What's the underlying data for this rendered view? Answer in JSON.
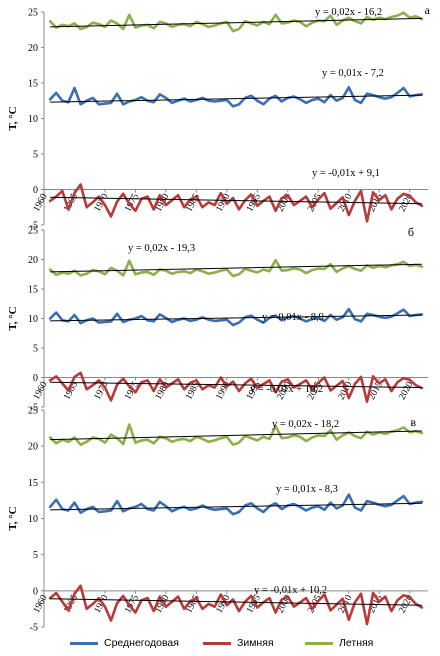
{
  "chart_data": [
    {
      "type": "line",
      "panel_label": "а",
      "ylabel": "Т, °С",
      "ylim": [
        -5,
        25
      ],
      "yticks": [
        "-5",
        "0",
        "5",
        "10",
        "15",
        "20",
        "25"
      ],
      "xlim": [
        1960,
        2023
      ],
      "xticks": [
        "1960",
        "1965",
        "1970",
        "1975",
        "1980",
        "1985",
        "1990",
        "1995",
        "2000",
        "2005",
        "2010",
        "2015",
        "2020"
      ],
      "x_start": 1961,
      "series": [
        {
          "name": "Среднегодовая",
          "color": "#3a6fb5",
          "values": [
            12.7,
            13.6,
            12.5,
            12.3,
            14.3,
            12.0,
            12.5,
            12.9,
            12.0,
            12.1,
            12.2,
            13.5,
            12.0,
            12.4,
            12.6,
            13.0,
            12.5,
            12.3,
            13.4,
            12.9,
            12.2,
            12.5,
            12.8,
            12.4,
            12.6,
            12.9,
            12.5,
            12.4,
            12.5,
            12.6,
            11.7,
            12.0,
            12.9,
            13.2,
            12.5,
            12.0,
            12.8,
            13.2,
            12.4,
            12.9,
            13.1,
            12.7,
            12.2,
            12.6,
            12.8,
            12.3,
            13.3,
            12.5,
            12.9,
            14.4,
            12.6,
            12.2,
            13.5,
            13.3,
            13.0,
            12.8,
            13.0,
            13.6,
            14.3,
            13.1,
            13.3,
            13.4
          ]
        },
        {
          "name": "Зимняя",
          "color": "#b83a3a",
          "values": [
            -1.6,
            -1.0,
            -0.2,
            -2.8,
            -0.5,
            0.7,
            -2.5,
            -1.8,
            -1.0,
            -2.2,
            -3.8,
            -1.7,
            -0.6,
            -2.0,
            -3.0,
            -1.3,
            -1.0,
            -2.8,
            -0.8,
            -2.2,
            -1.5,
            -0.8,
            -2.5,
            -1.4,
            -1.0,
            -2.5,
            -1.8,
            -2.2,
            -0.5,
            -2.0,
            -1.2,
            -2.8,
            -1.5,
            -0.7,
            -2.3,
            -1.6,
            -1.0,
            -3.0,
            -1.2,
            -0.8,
            -2.2,
            -1.6,
            -1.0,
            -2.5,
            -1.4,
            -0.5,
            -2.7,
            -1.9,
            -1.1,
            -3.6,
            -1.6,
            -0.2,
            -4.5,
            -0.4,
            -1.5,
            -0.8,
            -2.8,
            -1.3,
            -0.6,
            -0.9,
            -1.8,
            -2.3
          ]
        },
        {
          "name": "Летняя",
          "color": "#8db04a",
          "values": [
            23.7,
            22.8,
            23.2,
            23.0,
            23.4,
            22.6,
            22.9,
            23.5,
            23.3,
            22.9,
            23.8,
            23.4,
            22.6,
            24.6,
            22.8,
            23.1,
            23.2,
            22.7,
            23.6,
            23.4,
            22.9,
            23.2,
            23.3,
            23.0,
            23.6,
            23.3,
            22.9,
            23.1,
            23.4,
            23.6,
            22.3,
            22.6,
            23.7,
            23.4,
            23.1,
            23.6,
            23.3,
            24.6,
            23.4,
            23.5,
            23.8,
            23.6,
            23.0,
            23.5,
            23.8,
            23.7,
            24.5,
            23.2,
            23.8,
            24.2,
            23.7,
            23.4,
            24.3,
            23.9,
            24.2,
            24.0,
            24.3,
            24.5,
            24.9,
            24.2,
            24.4,
            24.0
          ]
        }
      ],
      "trends": [
        {
          "label": "y = 0,02x - 16,2",
          "start": 22.9,
          "end": 24.1
        },
        {
          "label": "y = 0,01x - 7,2",
          "start": 12.3,
          "end": 13.3
        },
        {
          "label": "y = -0,01x + 9,1",
          "start": -1.1,
          "end": -2.0
        }
      ]
    },
    {
      "type": "line",
      "panel_label": "б",
      "ylabel": "Т, °С",
      "ylim": [
        -5,
        25
      ],
      "yticks": [
        "-5",
        "0",
        "5",
        "10",
        "15",
        "20",
        "25"
      ],
      "xlim": [
        1960,
        2023
      ],
      "xticks": [
        "1960",
        "1965",
        "1970",
        "1975",
        "1980",
        "1985",
        "1990",
        "1995",
        "2000",
        "2005",
        "2010",
        "2015",
        "2020"
      ],
      "x_start": 1961,
      "series": [
        {
          "name": "Среднегодовая",
          "color": "#3a6fb5",
          "values": [
            10.0,
            11.0,
            9.7,
            9.5,
            10.6,
            9.2,
            9.7,
            10.0,
            9.3,
            9.4,
            9.5,
            10.8,
            9.4,
            9.8,
            10.0,
            10.4,
            9.7,
            9.5,
            10.7,
            10.1,
            9.4,
            9.8,
            10.0,
            9.6,
            9.8,
            10.2,
            9.8,
            9.6,
            9.7,
            9.8,
            8.9,
            9.3,
            10.2,
            10.5,
            9.8,
            9.3,
            10.1,
            10.5,
            9.7,
            10.2,
            10.4,
            10.0,
            9.5,
            9.9,
            10.1,
            9.6,
            10.6,
            9.8,
            10.2,
            11.6,
            9.9,
            9.5,
            10.8,
            10.6,
            10.3,
            10.1,
            10.3,
            10.9,
            11.5,
            10.4,
            10.6,
            10.7
          ]
        },
        {
          "name": "Зимняя",
          "color": "#b83a3a",
          "values": [
            -0.5,
            0.2,
            -1.0,
            -2.2,
            0.1,
            0.8,
            -2.0,
            -1.3,
            -0.5,
            -1.7,
            -3.9,
            -1.2,
            -0.2,
            -1.5,
            -2.5,
            -0.8,
            -0.5,
            -2.3,
            -0.3,
            -1.7,
            -1.0,
            -0.3,
            -2.0,
            -0.9,
            -0.5,
            -2.0,
            -1.3,
            -1.7,
            0.0,
            -1.5,
            -0.7,
            -2.3,
            -1.0,
            -0.2,
            -1.8,
            -1.1,
            -0.5,
            -2.5,
            -0.7,
            -0.3,
            -1.7,
            -1.1,
            -0.5,
            -2.0,
            -0.9,
            0.0,
            -2.2,
            -1.4,
            -0.6,
            -3.5,
            -1.1,
            0.1,
            -4.1,
            0.2,
            -1.0,
            -0.3,
            -2.3,
            -0.8,
            -0.1,
            -0.4,
            -1.3,
            -1.8
          ]
        },
        {
          "name": "Летняя",
          "color": "#8db04a",
          "values": [
            18.3,
            17.4,
            17.8,
            17.6,
            18.1,
            17.3,
            17.6,
            18.2,
            18.0,
            17.5,
            18.6,
            18.1,
            17.3,
            19.8,
            17.5,
            17.8,
            17.9,
            17.4,
            18.3,
            18.1,
            17.6,
            17.9,
            18.0,
            17.7,
            18.3,
            18.0,
            17.6,
            17.8,
            18.1,
            18.3,
            17.2,
            17.5,
            18.4,
            18.1,
            17.8,
            18.3,
            18.0,
            19.9,
            18.1,
            18.2,
            18.5,
            18.3,
            17.7,
            18.2,
            18.5,
            18.4,
            19.2,
            17.9,
            18.5,
            18.9,
            18.4,
            18.1,
            19.0,
            18.6,
            18.9,
            18.7,
            19.0,
            19.2,
            19.6,
            18.9,
            19.1,
            18.8
          ]
        }
      ],
      "trends": [
        {
          "label": "y = 0,02x - 19,3",
          "start": 17.9,
          "end": 19.2
        },
        {
          "label": "y = 0,01x - 8,9",
          "start": 9.6,
          "end": 10.6
        },
        {
          "label": "y = -0,01x + 10,2",
          "start": -0.8,
          "end": -1.7
        }
      ]
    },
    {
      "type": "line",
      "panel_label": "в",
      "ylabel": "Т, °С",
      "ylim": [
        -5,
        25
      ],
      "yticks": [
        "-5",
        "0",
        "5",
        "10",
        "15",
        "20",
        "25"
      ],
      "xlim": [
        1960,
        2023
      ],
      "xticks": [
        "1960",
        "1965",
        "1970",
        "1975",
        "1980",
        "1985",
        "1990",
        "1995",
        "2000",
        "2005",
        "2010",
        "2015",
        "2020"
      ],
      "x_start": 1961,
      "series": [
        {
          "name": "Среднегодовая",
          "color": "#3a6fb5",
          "values": [
            11.6,
            12.6,
            11.3,
            11.1,
            12.2,
            10.8,
            11.3,
            11.6,
            10.9,
            11.0,
            11.1,
            12.4,
            11.0,
            11.4,
            11.6,
            12.0,
            11.3,
            11.1,
            12.3,
            11.7,
            11.0,
            11.4,
            11.6,
            11.2,
            11.4,
            11.8,
            11.4,
            11.2,
            11.3,
            11.4,
            10.6,
            10.9,
            11.8,
            12.1,
            11.4,
            10.9,
            11.7,
            12.1,
            11.3,
            11.8,
            12.0,
            11.6,
            11.1,
            11.5,
            11.7,
            11.2,
            12.2,
            11.4,
            11.8,
            13.3,
            11.5,
            11.1,
            12.4,
            12.2,
            11.9,
            11.7,
            11.9,
            12.5,
            13.1,
            12.0,
            12.2,
            12.3
          ]
        },
        {
          "name": "Зимняя",
          "color": "#b83a3a",
          "values": [
            -1.0,
            -0.3,
            -1.5,
            -2.7,
            -0.4,
            0.7,
            -2.5,
            -1.8,
            -1.0,
            -2.2,
            -4.1,
            -1.7,
            -0.7,
            -2.0,
            -3.0,
            -1.3,
            -1.0,
            -2.8,
            -0.8,
            -2.2,
            -1.5,
            -0.8,
            -2.5,
            -1.4,
            -1.0,
            -2.5,
            -1.8,
            -2.2,
            -0.5,
            -2.0,
            -1.2,
            -2.8,
            -1.5,
            -0.7,
            -2.3,
            -1.6,
            -1.0,
            -3.0,
            -1.2,
            -0.8,
            -2.2,
            -1.6,
            -1.0,
            -2.5,
            -1.4,
            -0.5,
            -2.7,
            -1.9,
            -1.1,
            -4.0,
            -1.6,
            -0.4,
            -4.6,
            -0.3,
            -1.5,
            -0.8,
            -2.8,
            -1.3,
            -0.6,
            -0.9,
            -1.8,
            -2.3
          ]
        },
        {
          "name": "Летняя",
          "color": "#8db04a",
          "values": [
            21.2,
            20.4,
            20.9,
            20.6,
            21.2,
            20.2,
            20.6,
            21.2,
            21.0,
            20.5,
            21.6,
            21.1,
            20.3,
            23.0,
            20.5,
            20.8,
            20.9,
            20.4,
            21.3,
            21.1,
            20.6,
            20.9,
            21.0,
            20.7,
            21.3,
            21.0,
            20.6,
            20.8,
            21.1,
            21.3,
            20.2,
            20.5,
            21.4,
            21.1,
            20.8,
            21.3,
            21.0,
            22.8,
            21.1,
            21.2,
            21.5,
            21.3,
            20.7,
            21.2,
            21.5,
            21.4,
            22.2,
            20.9,
            21.5,
            21.9,
            21.4,
            21.1,
            22.0,
            21.6,
            21.9,
            21.7,
            22.0,
            22.2,
            22.6,
            21.9,
            22.1,
            21.8
          ]
        }
      ],
      "trends": [
        {
          "label": "y = 0,02x - 18,2",
          "start": 20.9,
          "end": 22.1
        },
        {
          "label": "y = 0,01x - 8,3",
          "start": 11.2,
          "end": 12.1
        },
        {
          "label": "y = -0,01x + 10,2",
          "start": -1.1,
          "end": -2.0
        }
      ]
    }
  ],
  "legend": {
    "items": [
      {
        "label": "Среднегодовая",
        "color": "#3a6fb5"
      },
      {
        "label": "Зимняя",
        "color": "#b83a3a"
      },
      {
        "label": "Летняя",
        "color": "#8db04a"
      }
    ]
  }
}
